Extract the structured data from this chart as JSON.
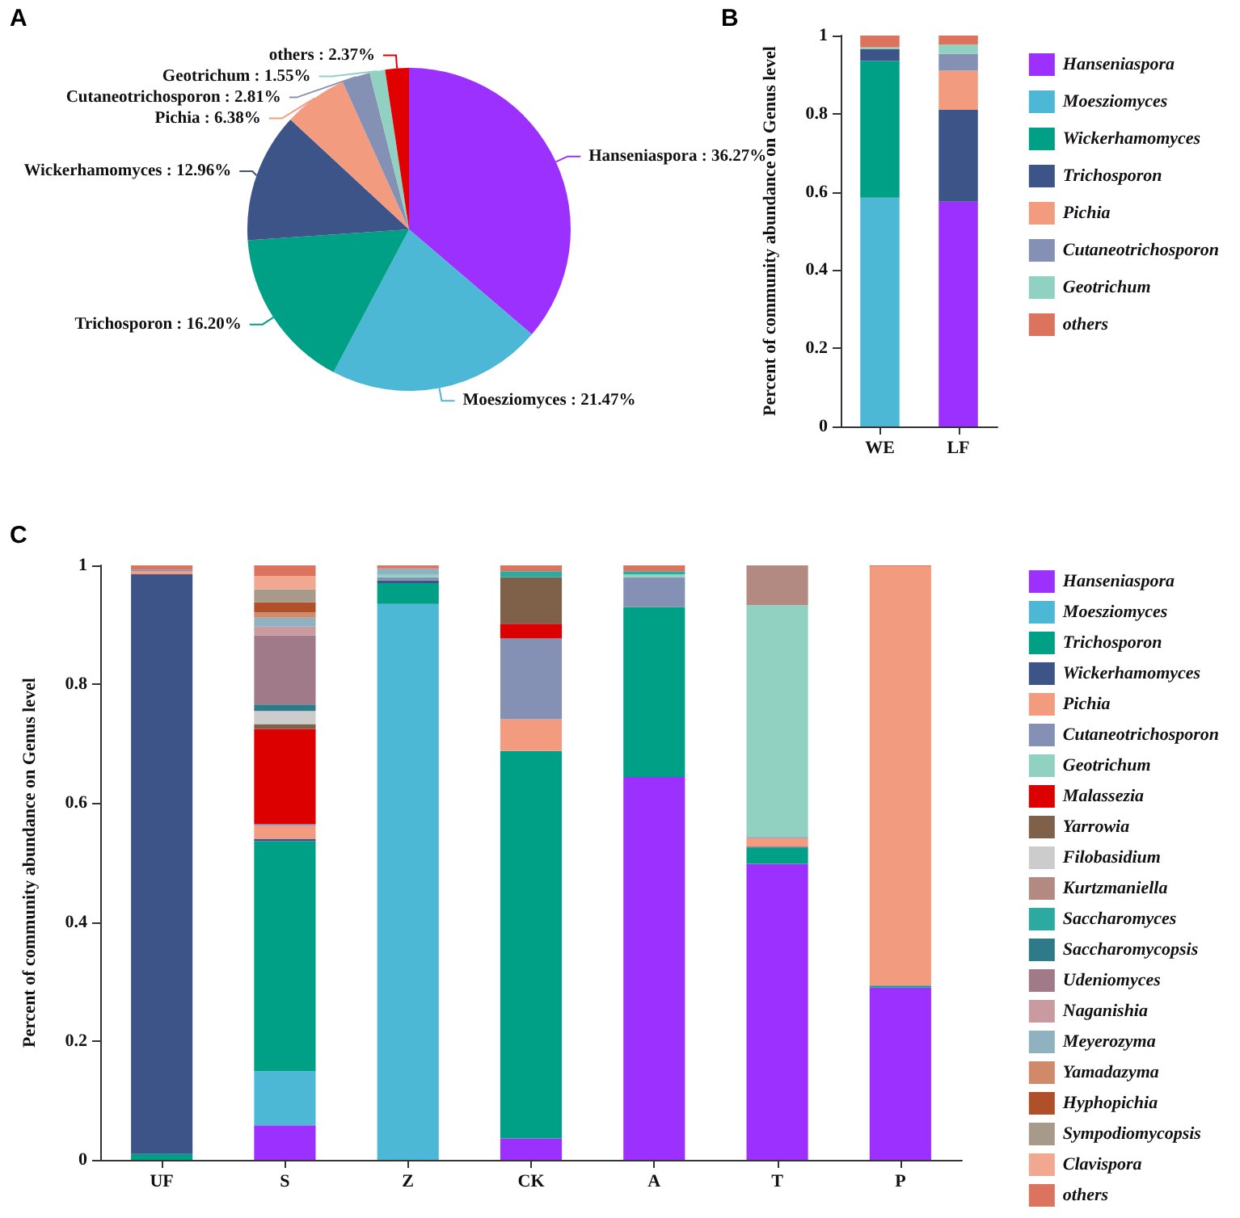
{
  "chart_data": [
    {
      "type": "pie",
      "annotations": [
        "A"
      ],
      "categories": [
        "Hanseniaspora",
        "Moesziomyces",
        "Trichosporon",
        "Wickerhamomyces",
        "Pichia",
        "Cutaneotrichosporon",
        "Geotrichum",
        "others"
      ],
      "values": [
        36.27,
        21.47,
        16.2,
        12.96,
        6.38,
        2.81,
        1.55,
        2.37
      ],
      "colors": [
        "#9b30ff",
        "#4db8d6",
        "#00a087",
        "#3c5488",
        "#f39b7f",
        "#8491b4",
        "#91d1c2",
        "#e00000"
      ],
      "value_labels": [
        ": 36.27%",
        ": 21.47%",
        ": 16.20%",
        ": 12.96%",
        ": 6.38%",
        ": 2.81%",
        ": 1.55%",
        ": 2.37%"
      ]
    },
    {
      "type": "bar",
      "annotations": [
        "B"
      ],
      "ylabel": "Percent of community abundance on Genus level",
      "categories": [
        "WE",
        "LF"
      ],
      "stacked": true,
      "legend": "right",
      "ylim": [
        0,
        1
      ],
      "yticks": [
        0,
        0.2,
        0.4,
        0.6,
        0.8,
        1
      ],
      "series": [
        {
          "name": "Hanseniaspora",
          "color": "#9b30ff",
          "values": [
            0,
            0.575
          ]
        },
        {
          "name": "Moesziomyces",
          "color": "#4db8d6",
          "values": [
            0.585,
            0
          ]
        },
        {
          "name": "Wickerhamomyces",
          "color": "#00a087",
          "values": [
            0.35,
            0
          ]
        },
        {
          "name": "Trichosporon",
          "color": "#3c5488",
          "values": [
            0.03,
            0.235
          ]
        },
        {
          "name": "Pichia",
          "color": "#f39b7f",
          "values": [
            0,
            0.1
          ]
        },
        {
          "name": "Cutaneotrichosporon",
          "color": "#8491b4",
          "values": [
            0,
            0.043
          ]
        },
        {
          "name": "Geotrichum",
          "color": "#91d1c2",
          "values": [
            0.005,
            0.024
          ]
        },
        {
          "name": "others",
          "color": "#dc735f",
          "values": [
            0.03,
            0.023
          ]
        }
      ]
    },
    {
      "type": "bar",
      "annotations": [
        "C"
      ],
      "ylabel": "Percent of community abundance on Genus level",
      "categories": [
        "UF",
        "S",
        "Z",
        "CK",
        "A",
        "T",
        "P"
      ],
      "stacked": true,
      "legend": "right",
      "ylim": [
        0,
        1
      ],
      "yticks": [
        0,
        0.2,
        0.4,
        0.6,
        0.8,
        1
      ],
      "series": [
        {
          "name": "Hanseniaspora",
          "color": "#9b30ff",
          "values": [
            0,
            0.058,
            0,
            0.036,
            0.644,
            0.498,
            0.29
          ]
        },
        {
          "name": "Moesziomyces",
          "color": "#4db8d6",
          "values": [
            0,
            0.091,
            0.935,
            0,
            0,
            0,
            0
          ]
        },
        {
          "name": "Trichosporon",
          "color": "#00a087",
          "values": [
            0.01,
            0.387,
            0.035,
            0.652,
            0.286,
            0.027,
            0.003
          ]
        },
        {
          "name": "Wickerhamomyces",
          "color": "#3c5488",
          "values": [
            0.975,
            0.004,
            0.005,
            0,
            0,
            0.002,
            0
          ]
        },
        {
          "name": "Pichia",
          "color": "#f39b7f",
          "values": [
            0.005,
            0.022,
            0,
            0.053,
            0,
            0.014,
            0.705
          ]
        },
        {
          "name": "Cutaneotrichosporon",
          "color": "#8491b4",
          "values": [
            0.003,
            0.003,
            0.005,
            0.136,
            0.05,
            0.002,
            0
          ]
        },
        {
          "name": "Geotrichum",
          "color": "#91d1c2",
          "values": [
            0,
            0,
            0.005,
            0,
            0.005,
            0.39,
            0
          ]
        },
        {
          "name": "Malassezia",
          "color": "#dc0000",
          "values": [
            0,
            0.16,
            0,
            0.025,
            0,
            0,
            0
          ]
        },
        {
          "name": "Yarrowia",
          "color": "#7e6148",
          "values": [
            0,
            0.008,
            0,
            0.078,
            0,
            0,
            0
          ]
        },
        {
          "name": "Filobasidium",
          "color": "#cccccc",
          "values": [
            0,
            0.022,
            0,
            0,
            0,
            0,
            0
          ]
        },
        {
          "name": "Kurtzmaniella",
          "color": "#b38a82",
          "values": [
            0,
            0,
            0,
            0,
            0,
            0.067,
            0
          ]
        },
        {
          "name": "Saccharomyces",
          "color": "#2ca9a0",
          "values": [
            0,
            0,
            0,
            0.01,
            0.005,
            0,
            0
          ]
        },
        {
          "name": "Saccharomycopsis",
          "color": "#2f7a88",
          "values": [
            0,
            0.011,
            0,
            0,
            0,
            0,
            0
          ]
        },
        {
          "name": "Udeniomyces",
          "color": "#a07a88",
          "values": [
            0,
            0.116,
            0,
            0,
            0,
            0,
            0
          ]
        },
        {
          "name": "Naganishia",
          "color": "#c99aa0",
          "values": [
            0,
            0.015,
            0,
            0,
            0,
            0,
            0
          ]
        },
        {
          "name": "Meyerozyma",
          "color": "#8fb1c0",
          "values": [
            0,
            0.015,
            0.01,
            0,
            0,
            0,
            0
          ]
        },
        {
          "name": "Yamadazyma",
          "color": "#d08a6a",
          "values": [
            0,
            0.009,
            0,
            0,
            0,
            0,
            0
          ]
        },
        {
          "name": "Hyphopichia",
          "color": "#b0502a",
          "values": [
            0,
            0.017,
            0,
            0,
            0,
            0,
            0
          ]
        },
        {
          "name": "Sympodiomycopsis",
          "color": "#a89a8a",
          "values": [
            0,
            0.022,
            0,
            0,
            0,
            0,
            0
          ]
        },
        {
          "name": "Clavispora",
          "color": "#f0a890",
          "values": [
            0,
            0.022,
            0,
            0,
            0,
            0,
            0
          ]
        },
        {
          "name": "others",
          "color": "#dc735f",
          "values": [
            0.007,
            0.018,
            0.005,
            0.01,
            0.01,
            0,
            0.002
          ]
        }
      ]
    }
  ]
}
